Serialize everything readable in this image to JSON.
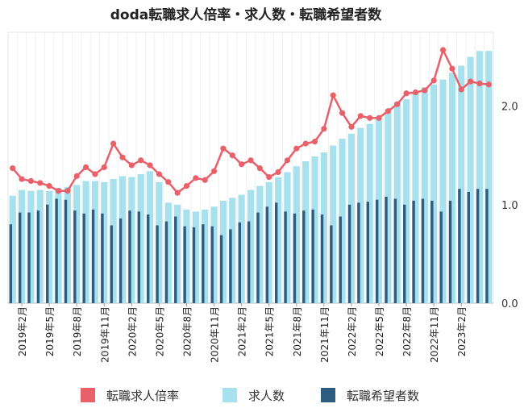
{
  "chart_data": {
    "type": "bar+line",
    "title": "doda転職求人倍率・求人数・転職希望者数",
    "categories": [
      "2019-01",
      "2019-02",
      "2019-03",
      "2019-04",
      "2019-05",
      "2019-06",
      "2019-07",
      "2019-08",
      "2019-09",
      "2019-10",
      "2019-11",
      "2019-12",
      "2020-01",
      "2020-02",
      "2020-03",
      "2020-04",
      "2020-05",
      "2020-06",
      "2020-07",
      "2020-08",
      "2020-09",
      "2020-10",
      "2020-11",
      "2020-12",
      "2021-01",
      "2021-02",
      "2021-03",
      "2021-04",
      "2021-05",
      "2021-06",
      "2021-07",
      "2021-08",
      "2021-09",
      "2021-10",
      "2021-11",
      "2021-12",
      "2022-01",
      "2022-02",
      "2022-03",
      "2022-04",
      "2022-05",
      "2022-06",
      "2022-07",
      "2022-08",
      "2022-09",
      "2022-10",
      "2022-11",
      "2022-12",
      "2023-01",
      "2023-02",
      "2023-03",
      "2023-04",
      "2023-05"
    ],
    "x_tick_labels": [
      {
        "index": 1,
        "label": "2019年2月"
      },
      {
        "index": 4,
        "label": "2019年5月"
      },
      {
        "index": 7,
        "label": "2019年8月"
      },
      {
        "index": 10,
        "label": "2019年11月"
      },
      {
        "index": 13,
        "label": "2020年2月"
      },
      {
        "index": 16,
        "label": "2020年5月"
      },
      {
        "index": 19,
        "label": "2020年8月"
      },
      {
        "index": 22,
        "label": "2020年11月"
      },
      {
        "index": 25,
        "label": "2021年2月"
      },
      {
        "index": 28,
        "label": "2021年5月"
      },
      {
        "index": 31,
        "label": "2021年8月"
      },
      {
        "index": 34,
        "label": "2021年11月"
      },
      {
        "index": 37,
        "label": "2022年2月"
      },
      {
        "index": 40,
        "label": "2022年5月"
      },
      {
        "index": 43,
        "label": "2022年8月"
      },
      {
        "index": 46,
        "label": "2022年11月"
      },
      {
        "index": 49,
        "label": "2023年2月"
      }
    ],
    "y_right": {
      "ticks": [
        "0.0",
        "1.0",
        "2.0"
      ],
      "range": [
        0,
        2.75
      ]
    },
    "bar_scale_range": [
      0,
      2.75
    ],
    "series": [
      {
        "name": "求人数",
        "kind": "bar",
        "color": "#a6e1ed",
        "values": [
          1.09,
          1.15,
          1.14,
          1.15,
          1.14,
          1.17,
          1.18,
          1.2,
          1.24,
          1.24,
          1.23,
          1.26,
          1.29,
          1.28,
          1.31,
          1.34,
          1.23,
          1.02,
          1.0,
          0.95,
          0.93,
          0.95,
          0.98,
          1.04,
          1.07,
          1.1,
          1.15,
          1.19,
          1.23,
          1.28,
          1.33,
          1.39,
          1.44,
          1.49,
          1.53,
          1.6,
          1.67,
          1.72,
          1.78,
          1.82,
          1.87,
          1.94,
          2.04,
          2.07,
          2.13,
          2.19,
          2.22,
          2.27,
          2.34,
          2.41,
          2.5,
          2.56,
          2.56
        ]
      },
      {
        "name": "転職希望者数",
        "kind": "bar",
        "color": "#2d5e82",
        "values": [
          0.8,
          0.92,
          0.92,
          0.94,
          1.0,
          1.06,
          1.05,
          0.94,
          0.91,
          0.95,
          0.91,
          0.79,
          0.86,
          0.94,
          0.93,
          0.9,
          0.79,
          0.83,
          0.88,
          0.78,
          0.77,
          0.8,
          0.78,
          0.69,
          0.75,
          0.82,
          0.83,
          0.92,
          0.98,
          1.02,
          0.93,
          0.91,
          0.94,
          0.95,
          0.9,
          0.79,
          0.88,
          1.0,
          1.02,
          1.03,
          1.05,
          1.08,
          1.06,
          1.0,
          1.04,
          1.06,
          1.04,
          0.93,
          1.04,
          1.16,
          1.13,
          1.16,
          1.16
        ]
      },
      {
        "name": "転職求人倍率",
        "kind": "line",
        "color": "#e8606a",
        "values": [
          1.37,
          1.26,
          1.24,
          1.22,
          1.19,
          1.14,
          1.14,
          1.29,
          1.38,
          1.31,
          1.38,
          1.62,
          1.48,
          1.4,
          1.45,
          1.4,
          1.31,
          1.23,
          1.12,
          1.19,
          1.27,
          1.25,
          1.34,
          1.57,
          1.5,
          1.41,
          1.45,
          1.37,
          1.28,
          1.33,
          1.45,
          1.57,
          1.62,
          1.64,
          1.77,
          2.11,
          1.93,
          1.79,
          1.9,
          1.88,
          1.88,
          1.95,
          2.02,
          2.13,
          2.14,
          2.16,
          2.26,
          2.57,
          2.38,
          2.17,
          2.25,
          2.23,
          2.22
        ]
      }
    ],
    "legend": [
      {
        "label": "転職求人倍率",
        "color": "#e8606a"
      },
      {
        "label": "求人数",
        "color": "#a6e1ed"
      },
      {
        "label": "転職希望者数",
        "color": "#2d5e82"
      }
    ],
    "legend_position": "bottom"
  }
}
